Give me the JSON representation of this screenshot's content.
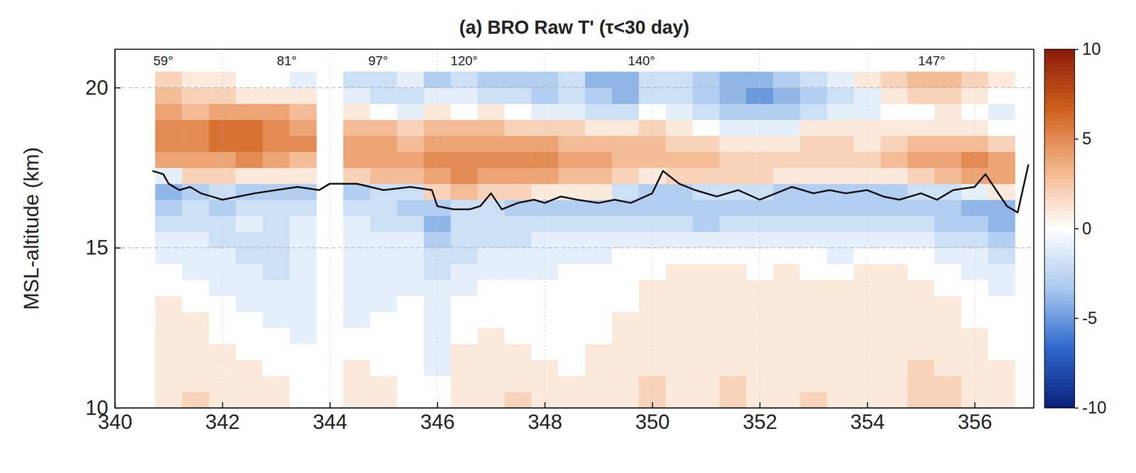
{
  "chart_data": {
    "type": "heatmap",
    "title": "(a) BRO Raw T' (τ<30 day)",
    "y_label": "MSL-altitude (km)",
    "xlim": [
      340,
      357.1
    ],
    "ylim": [
      10,
      21.2
    ],
    "xticks": [
      340,
      342,
      344,
      346,
      348,
      350,
      352,
      354,
      356
    ],
    "yticks": [
      10,
      15,
      20
    ],
    "grid": true,
    "x": [
      341.0,
      341.5,
      342.0,
      342.5,
      343.0,
      343.5,
      344.0,
      344.5,
      345.0,
      345.5,
      346.0,
      346.5,
      347.0,
      347.5,
      348.0,
      348.5,
      349.0,
      349.5,
      350.0,
      350.5,
      351.0,
      351.5,
      352.0,
      352.5,
      353.0,
      353.5,
      354.0,
      354.5,
      355.0,
      355.5,
      356.0,
      356.5
    ],
    "y": [
      10.25,
      10.75,
      11.25,
      11.75,
      12.25,
      12.75,
      13.25,
      13.75,
      14.25,
      14.75,
      15.25,
      15.75,
      16.25,
      16.75,
      17.25,
      17.75,
      18.25,
      18.75,
      19.25,
      19.75,
      20.25
    ],
    "values": [
      [
        1,
        2,
        1,
        1,
        1,
        0,
        null,
        1,
        1,
        0,
        0,
        1,
        1,
        2,
        1,
        1,
        1,
        1,
        2,
        1,
        1,
        2,
        1,
        1,
        2,
        1,
        1,
        1,
        2,
        2,
        1,
        1
      ],
      [
        1,
        1,
        1,
        1,
        1,
        0,
        null,
        1,
        1,
        0,
        0,
        1,
        1,
        1,
        1,
        1,
        1,
        1,
        2,
        1,
        1,
        2,
        1,
        1,
        1,
        1,
        1,
        1,
        2,
        2,
        1,
        1
      ],
      [
        1,
        1,
        1,
        1,
        0,
        0,
        null,
        1,
        0,
        0,
        -1,
        1,
        1,
        1,
        1,
        0,
        1,
        1,
        1,
        1,
        1,
        1,
        1,
        1,
        1,
        1,
        1,
        1,
        2,
        1,
        1,
        1
      ],
      [
        1,
        1,
        1,
        0,
        0,
        0,
        null,
        0,
        0,
        0,
        -1,
        1,
        1,
        1,
        0,
        0,
        1,
        1,
        1,
        1,
        1,
        1,
        1,
        1,
        1,
        1,
        1,
        1,
        1,
        1,
        1,
        0
      ],
      [
        1,
        1,
        0,
        0,
        0,
        -1,
        null,
        0,
        0,
        0,
        -1,
        0,
        1,
        0,
        0,
        0,
        0,
        1,
        1,
        1,
        1,
        1,
        1,
        1,
        1,
        1,
        1,
        1,
        1,
        1,
        1,
        0
      ],
      [
        1,
        1,
        0,
        0,
        -1,
        -1,
        null,
        -1,
        0,
        0,
        -1,
        0,
        0,
        0,
        0,
        0,
        0,
        1,
        1,
        1,
        1,
        1,
        1,
        1,
        1,
        1,
        1,
        1,
        1,
        1,
        0,
        0
      ],
      [
        1,
        0,
        0,
        -1,
        -1,
        -1,
        null,
        -1,
        -1,
        0,
        -1,
        0,
        0,
        0,
        0,
        0,
        0,
        0,
        1,
        1,
        1,
        1,
        1,
        1,
        1,
        1,
        1,
        1,
        1,
        1,
        0,
        0
      ],
      [
        0,
        0,
        -1,
        -1,
        -1,
        -1,
        null,
        -1,
        -1,
        -1,
        -1,
        -1,
        0,
        0,
        0,
        0,
        0,
        0,
        1,
        1,
        1,
        1,
        1,
        1,
        1,
        1,
        1,
        1,
        1,
        0,
        0,
        -1
      ],
      [
        0,
        -1,
        -1,
        -1,
        -2,
        -1,
        null,
        -1,
        -1,
        -1,
        -2,
        -1,
        -1,
        -1,
        -1,
        0,
        0,
        0,
        0,
        1,
        1,
        1,
        0,
        1,
        0,
        0,
        1,
        1,
        0,
        0,
        -1,
        -1
      ],
      [
        -1,
        -1,
        -1,
        -2,
        -2,
        -1,
        null,
        -1,
        -1,
        -1,
        -2,
        -2,
        -1,
        -1,
        -1,
        -1,
        -1,
        0,
        0,
        0,
        0,
        0,
        0,
        0,
        0,
        -1,
        0,
        0,
        0,
        -1,
        -1,
        -2
      ],
      [
        -1,
        -1,
        -2,
        -2,
        -2,
        -1,
        null,
        -1,
        -1,
        -1,
        -3,
        -2,
        -2,
        -2,
        -1,
        -1,
        -1,
        -1,
        -1,
        -1,
        -1,
        -1,
        -1,
        -1,
        -1,
        -1,
        -1,
        -1,
        -1,
        -2,
        -2,
        -3
      ],
      [
        -2,
        -2,
        -2,
        -1,
        -2,
        -1,
        null,
        -1,
        -2,
        -2,
        -4,
        -2,
        -2,
        -2,
        -2,
        -2,
        -2,
        -2,
        -2,
        -2,
        -3,
        -2,
        -2,
        -2,
        -2,
        -2,
        -2,
        -2,
        -2,
        -3,
        -3,
        -4
      ],
      [
        -3,
        -2,
        -3,
        -2,
        -2,
        -2,
        null,
        -2,
        -2,
        -3,
        -3,
        -2,
        -2,
        -3,
        -3,
        -3,
        -3,
        -3,
        -3,
        -3,
        -3,
        -3,
        -3,
        -3,
        -3,
        -3,
        -3,
        -3,
        -3,
        -3,
        -4,
        -4
      ],
      [
        -4,
        -3,
        -2,
        -3,
        -3,
        -3,
        null,
        -3,
        -2,
        -2,
        2,
        3,
        2,
        2,
        1,
        1,
        1,
        -2,
        -3,
        -3,
        -2,
        -2,
        -2,
        -3,
        -3,
        -3,
        -3,
        -3,
        -2,
        -2,
        -1,
        1
      ],
      [
        -1,
        2,
        2,
        1,
        1,
        1,
        null,
        2,
        3,
        3,
        4,
        5,
        4,
        4,
        4,
        3,
        3,
        2,
        1,
        2,
        2,
        2,
        2,
        1,
        1,
        1,
        1,
        1,
        2,
        3,
        4,
        4
      ],
      [
        4,
        4,
        4,
        5,
        4,
        3,
        null,
        4,
        4,
        4,
        5,
        5,
        5,
        5,
        5,
        4,
        4,
        3,
        3,
        3,
        3,
        2,
        2,
        2,
        2,
        2,
        2,
        3,
        4,
        4,
        5,
        4
      ],
      [
        5,
        5,
        6,
        6,
        5,
        5,
        null,
        4,
        4,
        3,
        4,
        4,
        4,
        4,
        4,
        3,
        3,
        3,
        3,
        2,
        2,
        1,
        1,
        1,
        2,
        2,
        1,
        2,
        3,
        3,
        3,
        2
      ],
      [
        5,
        5,
        6,
        6,
        5,
        4,
        null,
        3,
        3,
        2,
        3,
        3,
        3,
        2,
        2,
        2,
        1,
        1,
        2,
        1,
        0,
        -1,
        -1,
        -1,
        1,
        1,
        1,
        1,
        1,
        1,
        1,
        0
      ],
      [
        4,
        3,
        4,
        4,
        4,
        3,
        null,
        1,
        0,
        -1,
        1,
        0,
        1,
        0,
        -1,
        -1,
        -2,
        -2,
        0,
        -1,
        -2,
        -3,
        -3,
        -3,
        -2,
        -1,
        -1,
        0,
        0,
        1,
        0,
        -1
      ],
      [
        3,
        2,
        2,
        1,
        1,
        1,
        null,
        -1,
        -2,
        -2,
        -1,
        -1,
        -2,
        -2,
        -3,
        -2,
        -3,
        -4,
        -2,
        -2,
        -3,
        -4,
        -5,
        -4,
        -3,
        -2,
        -1,
        1,
        2,
        2,
        1,
        0
      ],
      [
        2,
        1,
        1,
        0,
        0,
        -1,
        null,
        -2,
        -2,
        -1,
        -3,
        -2,
        -3,
        -3,
        -3,
        -2,
        -4,
        -4,
        -2,
        -2,
        -3,
        -4,
        -4,
        -3,
        -2,
        -1,
        1,
        2,
        3,
        3,
        2,
        1
      ]
    ],
    "colorbar": {
      "range": [
        -10,
        10
      ],
      "ticks": [
        -10,
        -5,
        0,
        5,
        10
      ]
    },
    "series": [
      {
        "type": "line",
        "color": "#000000",
        "x": [
          340.7,
          340.9,
          341.0,
          341.2,
          341.4,
          341.6,
          341.8,
          342.0,
          342.3,
          342.6,
          343.0,
          343.4,
          343.8,
          344.0,
          344.5,
          345.0,
          345.5,
          345.9,
          346.0,
          346.3,
          346.6,
          346.8,
          347.0,
          347.2,
          347.5,
          347.8,
          348.0,
          348.3,
          348.6,
          349.0,
          349.3,
          349.6,
          350.0,
          350.2,
          350.5,
          350.8,
          351.2,
          351.6,
          352.0,
          352.3,
          352.6,
          353.0,
          353.3,
          353.6,
          354.0,
          354.3,
          354.6,
          355.0,
          355.3,
          355.6,
          356.0,
          356.2,
          356.4,
          356.6,
          356.8,
          357.0
        ],
        "values": [
          17.4,
          17.3,
          17.0,
          16.8,
          16.9,
          16.7,
          16.6,
          16.5,
          16.6,
          16.7,
          16.8,
          16.9,
          16.8,
          17.0,
          17.0,
          16.8,
          16.9,
          16.8,
          16.3,
          16.2,
          16.2,
          16.3,
          16.7,
          16.2,
          16.4,
          16.5,
          16.4,
          16.6,
          16.5,
          16.4,
          16.5,
          16.4,
          16.7,
          17.4,
          17.0,
          16.8,
          16.6,
          16.8,
          16.5,
          16.7,
          16.9,
          16.7,
          16.8,
          16.7,
          16.8,
          16.6,
          16.5,
          16.7,
          16.5,
          16.8,
          16.9,
          17.3,
          16.8,
          16.3,
          16.1,
          17.6
        ]
      }
    ],
    "annotations": [
      {
        "text": "59°",
        "x": 340.9
      },
      {
        "text": "81°",
        "x": 343.2
      },
      {
        "text": "97°",
        "x": 344.9
      },
      {
        "text": "120°",
        "x": 346.5
      },
      {
        "text": "140°",
        "x": 349.8
      },
      {
        "text": "147°",
        "x": 355.2
      }
    ]
  }
}
